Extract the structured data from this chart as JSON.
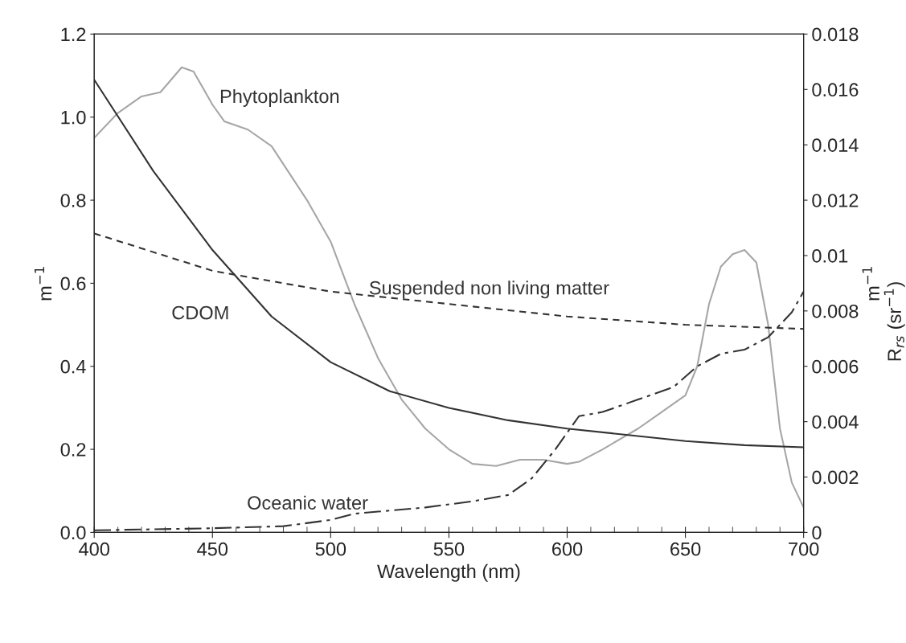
{
  "chart_data": {
    "type": "line",
    "xlabel": "Wavelength (nm)",
    "ylabel": "m$^{−1}$",
    "y2label": "m$^{−1}$",
    "xlim": [
      400,
      700
    ],
    "xticks": [
      400,
      450,
      500,
      550,
      600,
      650,
      700
    ],
    "ylim": [
      0,
      1.2
    ],
    "yticks": [
      {
        "value": 0,
        "label": "0.0"
      },
      0.2,
      0.4,
      0.6,
      0.8,
      {
        "value": 1,
        "label": "1.0"
      },
      1.2
    ],
    "y2lim": [
      0,
      0.018
    ],
    "y2ticks": [
      0,
      0.002,
      0.004,
      0.006,
      0.008,
      0.01,
      0.012,
      0.014,
      0.016,
      0.018
    ],
    "grid": false,
    "legend": false,
    "series": [
      {
        "name": "Phytoplankton",
        "color": "#a6a6a6",
        "line_style": "solid",
        "x": [
          400,
          410,
          420,
          428,
          437,
          442,
          450,
          455,
          465,
          475,
          490,
          500,
          510,
          520,
          530,
          540,
          550,
          560,
          570,
          580,
          590,
          600,
          605,
          615,
          630,
          640,
          650,
          655,
          660,
          665,
          670,
          675,
          680,
          685,
          690,
          695,
          700
        ],
        "values": [
          0.95,
          1.01,
          1.05,
          1.06,
          1.12,
          1.11,
          1.03,
          0.99,
          0.97,
          0.93,
          0.8,
          0.7,
          0.55,
          0.42,
          0.32,
          0.25,
          0.2,
          0.165,
          0.16,
          0.175,
          0.175,
          0.165,
          0.17,
          0.2,
          0.25,
          0.29,
          0.33,
          0.4,
          0.55,
          0.64,
          0.67,
          0.68,
          0.65,
          0.5,
          0.25,
          0.12,
          0.06
        ]
      },
      {
        "name": "CDOM",
        "color": "#333333",
        "line_style": "solid",
        "x": [
          400,
          425,
          450,
          475,
          500,
          525,
          550,
          575,
          600,
          625,
          650,
          675,
          700
        ],
        "values": [
          1.09,
          0.87,
          0.68,
          0.52,
          0.41,
          0.34,
          0.3,
          0.27,
          0.25,
          0.235,
          0.22,
          0.21,
          0.205
        ]
      },
      {
        "name": "Suspended non living matter",
        "color": "#333333",
        "line_style": "dashed",
        "x": [
          400,
          450,
          500,
          550,
          600,
          650,
          700
        ],
        "values": [
          0.72,
          0.63,
          0.58,
          0.55,
          0.52,
          0.5,
          0.49
        ]
      },
      {
        "name": "Oceanic water",
        "color": "#333333",
        "line_style": "dashdot",
        "x": [
          400,
          450,
          480,
          500,
          510,
          520,
          540,
          560,
          575,
          585,
          595,
          605,
          615,
          630,
          645,
          655,
          665,
          675,
          685,
          695,
          700
        ],
        "values": [
          0.005,
          0.01,
          0.015,
          0.03,
          0.045,
          0.05,
          0.06,
          0.075,
          0.09,
          0.13,
          0.2,
          0.28,
          0.29,
          0.32,
          0.35,
          0.4,
          0.43,
          0.44,
          0.47,
          0.53,
          0.58
        ]
      }
    ],
    "annotations": [
      "R$_{rs}$ (sr$^{−1}$)"
    ]
  }
}
